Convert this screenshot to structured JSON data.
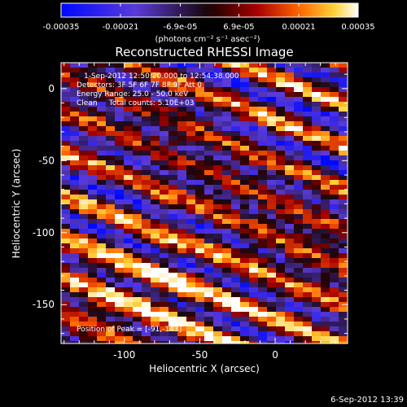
{
  "chart_data": {
    "type": "heatmap",
    "title": "Reconstructed RHESSI Image",
    "xlabel": "Heliocentric X (arcsec)",
    "ylabel": "Heliocentric Y (arcsec)",
    "xlim": [
      -142,
      48
    ],
    "ylim": [
      -177,
      18
    ],
    "x_ticks": [
      -100,
      -50,
      0
    ],
    "y_ticks": [
      0,
      -50,
      -100,
      -150
    ],
    "colorbar": {
      "ticks": [
        "-0.00035",
        "-0.00021",
        "-6.9e-05",
        "6.9e-05",
        "0.00021",
        "0.00035"
      ],
      "units": "(photons cm⁻² s⁻¹ asec⁻²)",
      "range": [
        -0.00035,
        0.00035
      ]
    },
    "annotations": [
      "1-Sep-2012 12:50:20.000 to 12:54:38.000",
      "Detectors: 3F 5F 6F 7F 8F 9F  Att 0",
      "Energy Range: 25.0 - 50.0 keV",
      "Clean     Total counts: 5.10E+03"
    ],
    "peak_label": "Position of Peak = [-91,-143]",
    "peak": [
      -91,
      -143
    ],
    "grid": false
  },
  "footer": {
    "date": "6-Sep-2012 13:39"
  }
}
